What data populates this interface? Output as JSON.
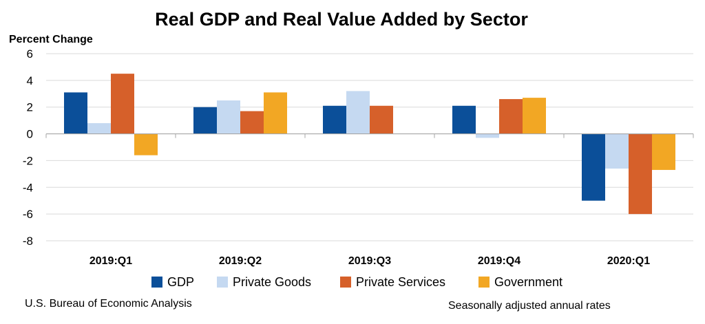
{
  "chart_data": {
    "type": "bar",
    "title": "Real GDP and Real Value Added by Sector",
    "ylabel": "Percent Change",
    "xlabel": "",
    "ylim": [
      -8,
      6
    ],
    "yticks": [
      6,
      4,
      2,
      0,
      -2,
      -4,
      -6,
      -8
    ],
    "grid": true,
    "legend_position": "bottom",
    "categories": [
      "2019:Q1",
      "2019:Q2",
      "2019:Q3",
      "2019:Q4",
      "2020:Q1"
    ],
    "series": [
      {
        "name": "GDP",
        "color": "#0b4f99",
        "values": [
          3.1,
          2.0,
          2.1,
          2.1,
          -5.0
        ]
      },
      {
        "name": "Private Goods",
        "color": "#c5d9f1",
        "values": [
          0.8,
          2.5,
          3.2,
          -0.3,
          -2.6
        ]
      },
      {
        "name": "Private Services",
        "color": "#d6602a",
        "values": [
          4.5,
          1.7,
          2.1,
          2.6,
          -6.0
        ]
      },
      {
        "name": "Government",
        "color": "#f2a724",
        "values": [
          -1.6,
          3.1,
          0.0,
          2.7,
          -2.7
        ]
      }
    ]
  },
  "source_note": "U.S. Bureau of Economic Analysis",
  "rates_note": "Seasonally adjusted annual rates"
}
